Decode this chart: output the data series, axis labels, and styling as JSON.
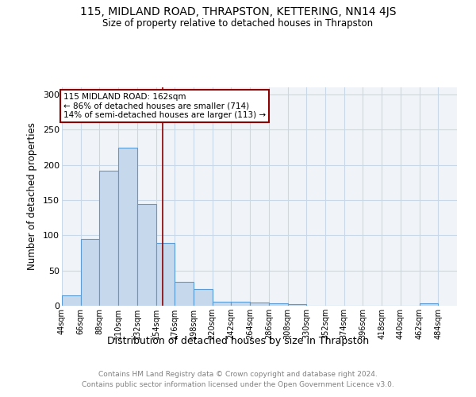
{
  "title": "115, MIDLAND ROAD, THRAPSTON, KETTERING, NN14 4JS",
  "subtitle": "Size of property relative to detached houses in Thrapston",
  "xlabel": "Distribution of detached houses by size in Thrapston",
  "ylabel": "Number of detached properties",
  "footer_line1": "Contains HM Land Registry data © Crown copyright and database right 2024.",
  "footer_line2": "Contains public sector information licensed under the Open Government Licence v3.0.",
  "bins": [
    44,
    66,
    88,
    110,
    132,
    154,
    176,
    198,
    220,
    242,
    264,
    286,
    308,
    330,
    352,
    374,
    396,
    418,
    440,
    462,
    484
  ],
  "counts": [
    15,
    95,
    192,
    224,
    144,
    89,
    34,
    24,
    6,
    6,
    4,
    3,
    2,
    0,
    0,
    0,
    0,
    0,
    0,
    3
  ],
  "bar_color": "#c5d8ec",
  "bar_edge_color": "#5b9bd5",
  "grid_color": "#c8d8e8",
  "vline_x": 162,
  "vline_color": "#8b0000",
  "annotation_text": "115 MIDLAND ROAD: 162sqm\n← 86% of detached houses are smaller (714)\n14% of semi-detached houses are larger (113) →",
  "annotation_box_color": "white",
  "annotation_box_edge_color": "#8b0000",
  "ylim": [
    0,
    310
  ],
  "xlim": [
    44,
    506
  ],
  "tick_labels": [
    "44sqm",
    "66sqm",
    "88sqm",
    "110sqm",
    "132sqm",
    "154sqm",
    "176sqm",
    "198sqm",
    "220sqm",
    "242sqm",
    "264sqm",
    "286sqm",
    "308sqm",
    "330sqm",
    "352sqm",
    "374sqm",
    "396sqm",
    "418sqm",
    "440sqm",
    "462sqm",
    "484sqm"
  ],
  "tick_positions": [
    44,
    66,
    88,
    110,
    132,
    154,
    176,
    198,
    220,
    242,
    264,
    286,
    308,
    330,
    352,
    374,
    396,
    418,
    440,
    462,
    484
  ],
  "bg_color": "#f0f4f8"
}
